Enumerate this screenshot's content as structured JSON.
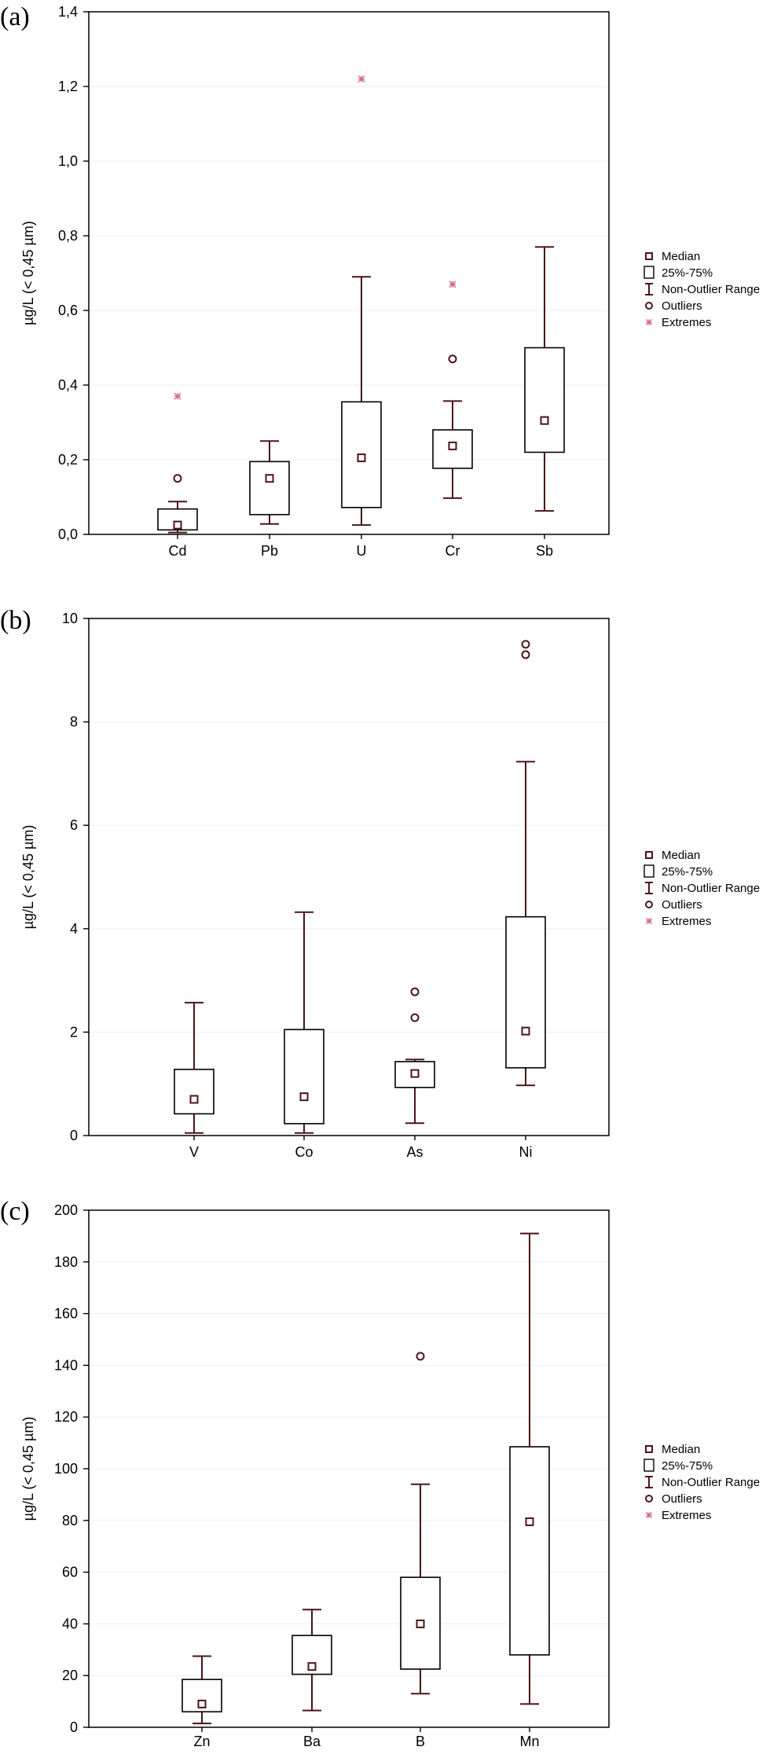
{
  "legend": {
    "median": "Median",
    "box": "25%-75%",
    "range": "Non-Outlier Range",
    "outliers": "Outliers",
    "extremes": "Extremes"
  },
  "colors": {
    "whisker": "#4a1418",
    "extreme": "#d46a82",
    "box": "#000000"
  },
  "chart_data": [
    {
      "type": "box",
      "panel": "(a)",
      "ylabel": "µg/L (< 0,45 µm)",
      "ylim": [
        0,
        1.4
      ],
      "yticks": [
        0,
        0.2,
        0.4,
        0.6,
        0.8,
        1.0,
        1.2,
        1.4
      ],
      "ytick_labels": [
        "0,0",
        "0,2",
        "0,4",
        "0,6",
        "0,8",
        "1,0",
        "1,2",
        "1,4"
      ],
      "categories": [
        "Cd",
        "Pb",
        "U",
        "Cr",
        "Sb"
      ],
      "series": [
        {
          "category": "Cd",
          "median": 0.025,
          "q1": 0.012,
          "q3": 0.068,
          "whisker_low": 0.005,
          "whisker_high": 0.088,
          "outliers": [
            0.15
          ],
          "extremes": [
            0.37
          ]
        },
        {
          "category": "Pb",
          "median": 0.15,
          "q1": 0.053,
          "q3": 0.195,
          "whisker_low": 0.028,
          "whisker_high": 0.25,
          "outliers": [],
          "extremes": []
        },
        {
          "category": "U",
          "median": 0.205,
          "q1": 0.072,
          "q3": 0.355,
          "whisker_low": 0.025,
          "whisker_high": 0.69,
          "outliers": [],
          "extremes": [
            1.22
          ]
        },
        {
          "category": "Cr",
          "median": 0.237,
          "q1": 0.177,
          "q3": 0.28,
          "whisker_low": 0.097,
          "whisker_high": 0.357,
          "outliers": [
            0.47
          ],
          "extremes": [
            0.67
          ]
        },
        {
          "category": "Sb",
          "median": 0.305,
          "q1": 0.22,
          "q3": 0.5,
          "whisker_low": 0.063,
          "whisker_high": 0.77,
          "outliers": [],
          "extremes": []
        }
      ]
    },
    {
      "type": "box",
      "panel": "(b)",
      "ylabel": "µg/L (< 0,45 µm)",
      "ylim": [
        0,
        10
      ],
      "yticks": [
        0,
        2,
        4,
        6,
        8,
        10
      ],
      "ytick_labels": [
        "0",
        "2",
        "4",
        "6",
        "8",
        "10"
      ],
      "categories": [
        "V",
        "Co",
        "As",
        "Ni"
      ],
      "series": [
        {
          "category": "V",
          "median": 0.7,
          "q1": 0.42,
          "q3": 1.28,
          "whisker_low": 0.05,
          "whisker_high": 2.57,
          "outliers": [],
          "extremes": []
        },
        {
          "category": "Co",
          "median": 0.75,
          "q1": 0.23,
          "q3": 2.05,
          "whisker_low": 0.05,
          "whisker_high": 4.32,
          "outliers": [],
          "extremes": []
        },
        {
          "category": "As",
          "median": 1.2,
          "q1": 0.93,
          "q3": 1.43,
          "whisker_low": 0.24,
          "whisker_high": 1.47,
          "outliers": [
            2.28,
            2.78
          ],
          "extremes": []
        },
        {
          "category": "Ni",
          "median": 2.02,
          "q1": 1.31,
          "q3": 4.23,
          "whisker_low": 0.97,
          "whisker_high": 7.23,
          "outliers": [
            9.3,
            9.5
          ],
          "extremes": []
        }
      ]
    },
    {
      "type": "box",
      "panel": "(c)",
      "ylabel": "µg/L (< 0,45 µm)",
      "ylim": [
        0,
        200
      ],
      "yticks": [
        0,
        20,
        40,
        60,
        80,
        100,
        120,
        140,
        160,
        180,
        200
      ],
      "ytick_labels": [
        "0",
        "20",
        "40",
        "60",
        "80",
        "100",
        "120",
        "140",
        "160",
        "180",
        "200"
      ],
      "categories": [
        "Zn",
        "Ba",
        "B",
        "Mn"
      ],
      "series": [
        {
          "category": "Zn",
          "median": 9,
          "q1": 6,
          "q3": 18.5,
          "whisker_low": 1.5,
          "whisker_high": 27.5,
          "outliers": [],
          "extremes": []
        },
        {
          "category": "Ba",
          "median": 23.5,
          "q1": 20.5,
          "q3": 35.5,
          "whisker_low": 6.5,
          "whisker_high": 45.5,
          "outliers": [],
          "extremes": []
        },
        {
          "category": "B",
          "median": 40,
          "q1": 22.5,
          "q3": 58,
          "whisker_low": 13,
          "whisker_high": 94,
          "outliers": [
            143.5
          ],
          "extremes": []
        },
        {
          "category": "Mn",
          "median": 79.5,
          "q1": 28,
          "q3": 108.5,
          "whisker_low": 9,
          "whisker_high": 191,
          "outliers": [],
          "extremes": []
        }
      ]
    }
  ]
}
